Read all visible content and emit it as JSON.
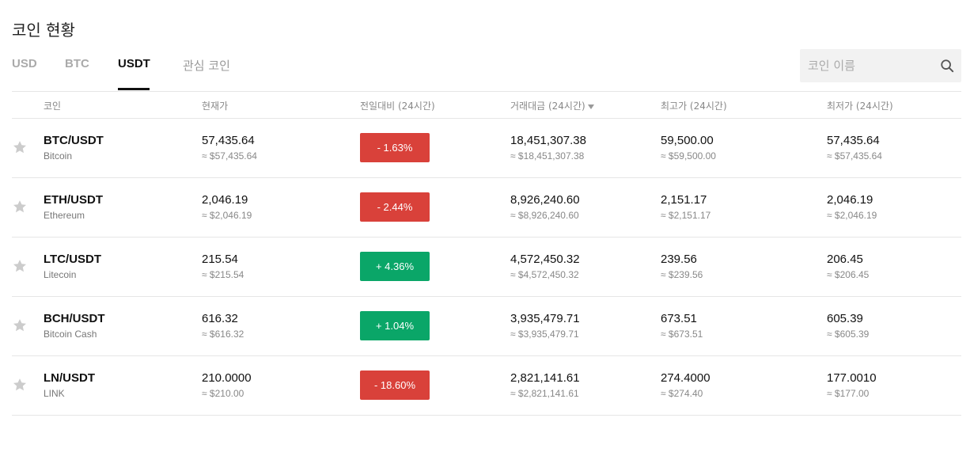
{
  "page_title": "코인 현황",
  "tabs": [
    {
      "label": "USD",
      "active": false
    },
    {
      "label": "BTC",
      "active": false
    },
    {
      "label": "USDT",
      "active": true
    },
    {
      "label": "관심 코인",
      "active": false
    }
  ],
  "search": {
    "placeholder": "코인 이름",
    "value": ""
  },
  "table": {
    "headers": {
      "coin": "코인",
      "price": "현재가",
      "change": "전일대비 (24시간)",
      "volume": "거래대금 (24시간)",
      "high": "최고가 (24시간)",
      "low": "최저가 (24시간)"
    },
    "sorted_column": "volume",
    "sort_direction": "desc",
    "rows": [
      {
        "pair": "BTC/USDT",
        "name": "Bitcoin",
        "price": "57,435.64",
        "price_usd": "≈ $57,435.64",
        "change": "- 1.63%",
        "direction": "down",
        "volume": "18,451,307.38",
        "volume_usd": "≈ $18,451,307.38",
        "high": "59,500.00",
        "high_usd": "≈ $59,500.00",
        "low": "57,435.64",
        "low_usd": "≈ $57,435.64",
        "favorite": false
      },
      {
        "pair": "ETH/USDT",
        "name": "Ethereum",
        "price": "2,046.19",
        "price_usd": "≈ $2,046.19",
        "change": "- 2.44%",
        "direction": "down",
        "volume": "8,926,240.60",
        "volume_usd": "≈ $8,926,240.60",
        "high": "2,151.17",
        "high_usd": "≈ $2,151.17",
        "low": "2,046.19",
        "low_usd": "≈ $2,046.19",
        "favorite": false
      },
      {
        "pair": "LTC/USDT",
        "name": "Litecoin",
        "price": "215.54",
        "price_usd": "≈ $215.54",
        "change": "+ 4.36%",
        "direction": "up",
        "volume": "4,572,450.32",
        "volume_usd": "≈ $4,572,450.32",
        "high": "239.56",
        "high_usd": "≈ $239.56",
        "low": "206.45",
        "low_usd": "≈ $206.45",
        "favorite": false
      },
      {
        "pair": "BCH/USDT",
        "name": "Bitcoin Cash",
        "price": "616.32",
        "price_usd": "≈ $616.32",
        "change": "+ 1.04%",
        "direction": "up",
        "volume": "3,935,479.71",
        "volume_usd": "≈ $3,935,479.71",
        "high": "673.51",
        "high_usd": "≈ $673.51",
        "low": "605.39",
        "low_usd": "≈ $605.39",
        "favorite": false
      },
      {
        "pair": "LN/USDT",
        "name": "LINK",
        "price": "210.0000",
        "price_usd": "≈ $210.00",
        "change": "- 18.60%",
        "direction": "down",
        "volume": "2,821,141.61",
        "volume_usd": "≈ $2,821,141.61",
        "high": "274.4000",
        "high_usd": "≈ $274.40",
        "low": "177.0010",
        "low_usd": "≈ $177.00",
        "favorite": false
      }
    ]
  },
  "colors": {
    "up": "#0aa668",
    "down": "#d9413a",
    "star": "#cccccc",
    "active_tab": "#111111",
    "inactive_tab": "#aaaaaa"
  },
  "icons": {
    "search": "search-icon",
    "favorite": "star-icon",
    "sort": "sort-down-icon"
  }
}
